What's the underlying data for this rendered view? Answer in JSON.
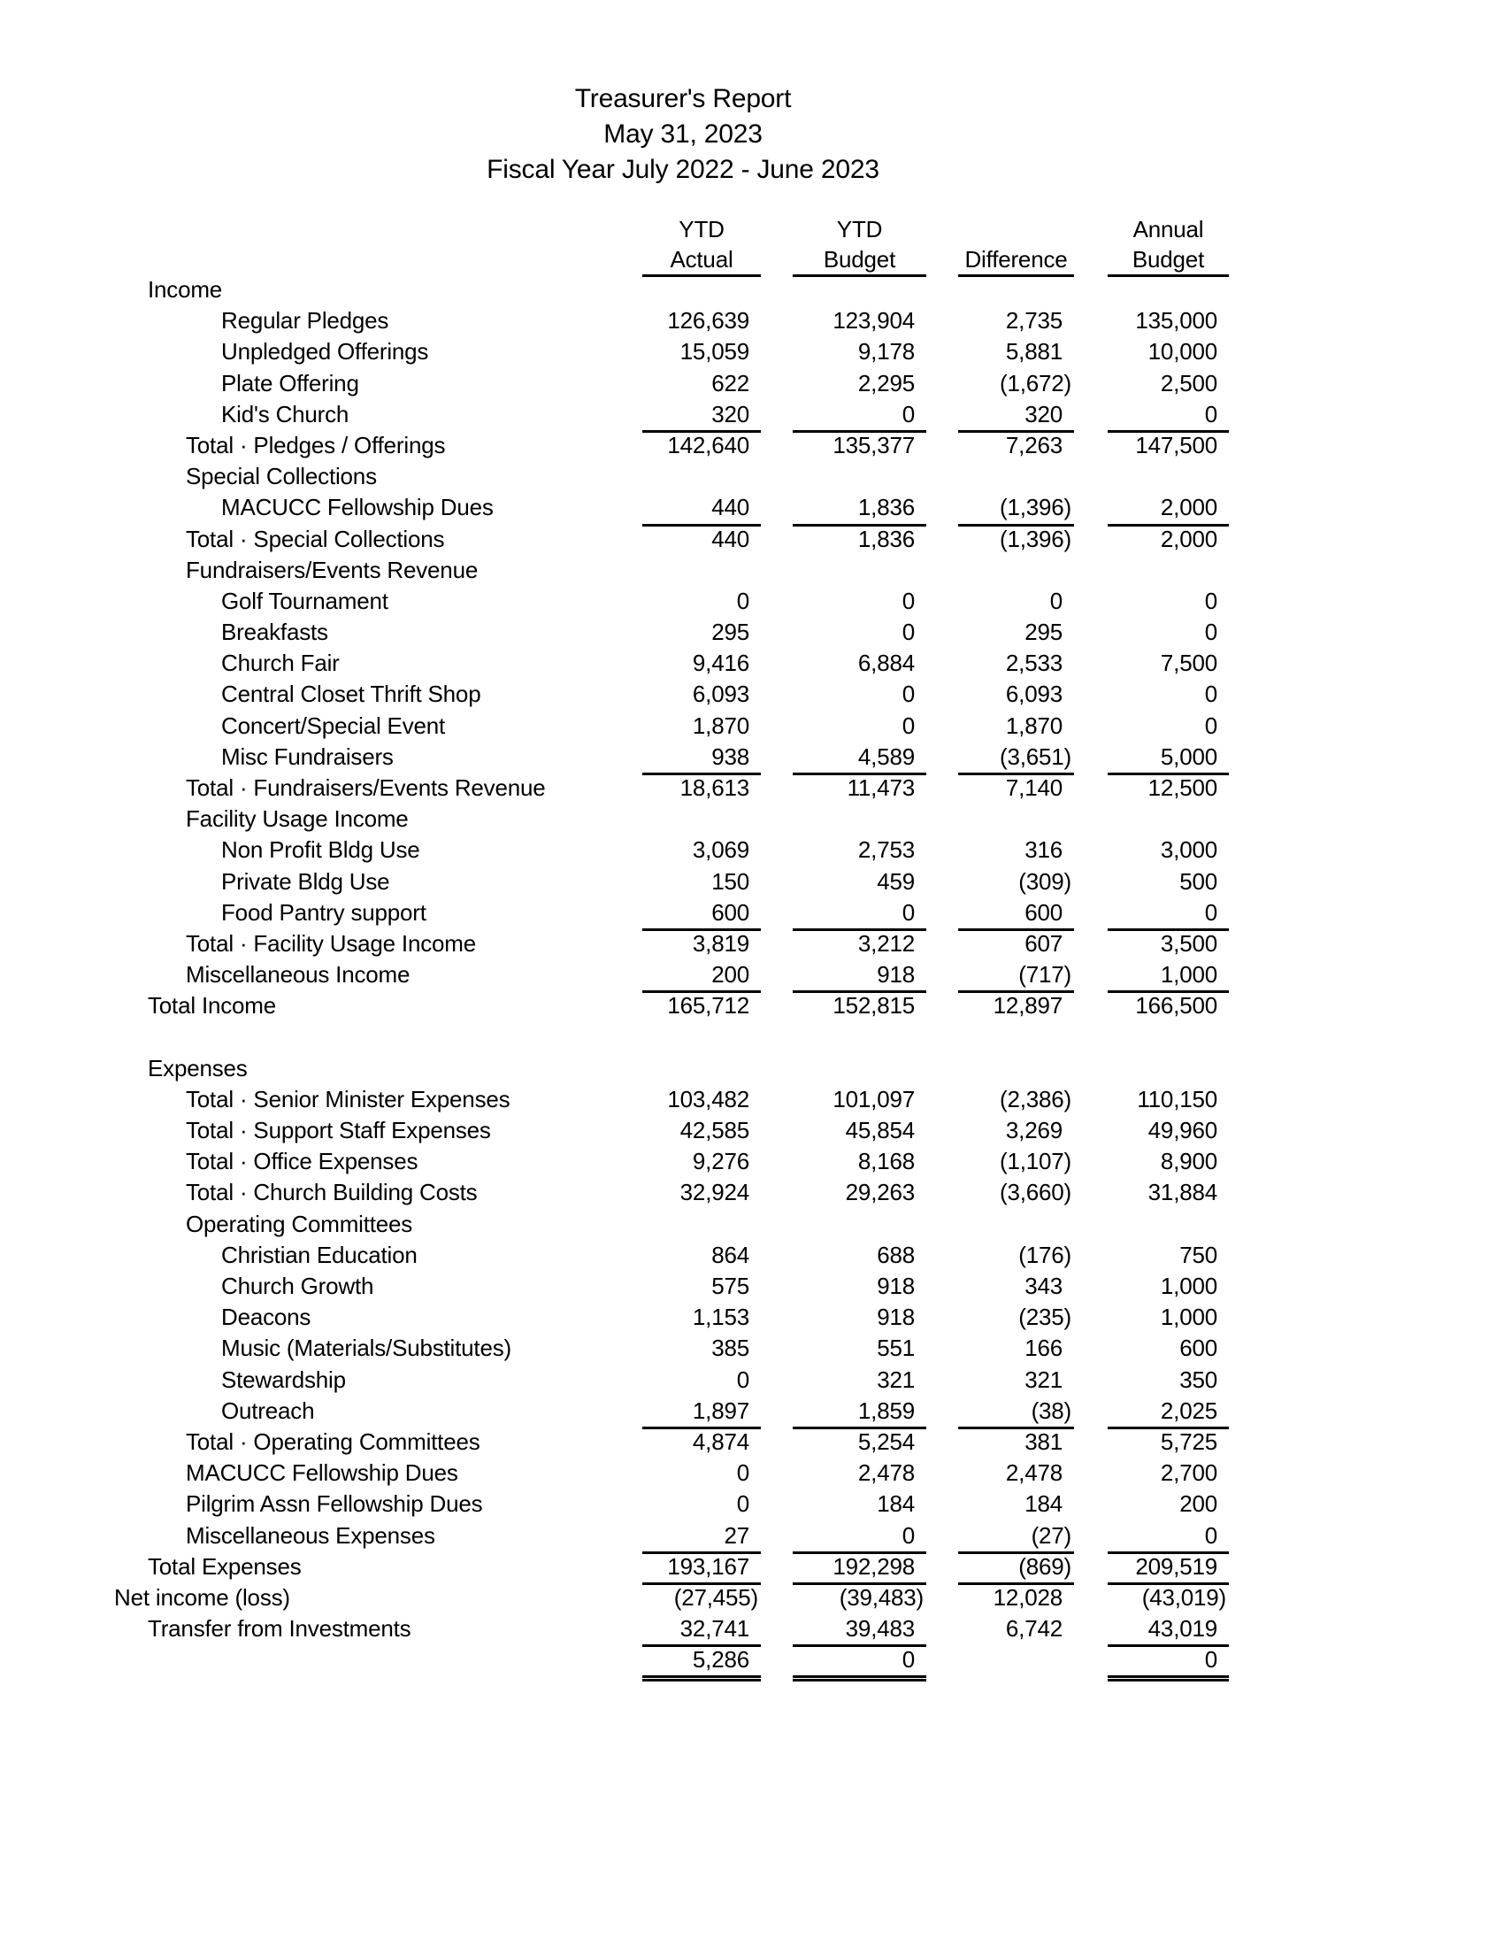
{
  "title": {
    "report": "Treasurer's Report",
    "date": "May 31, 2023",
    "fiscal_year": "Fiscal Year July 2022 - June 2023"
  },
  "table": {
    "columns": [
      {
        "top": "YTD",
        "bottom": "Actual"
      },
      {
        "top": "YTD",
        "bottom": "Budget"
      },
      {
        "top": "",
        "bottom": "Difference"
      },
      {
        "top": "Annual",
        "bottom": "Budget"
      }
    ],
    "rows": [
      {
        "label": "Income",
        "indent": 1,
        "values": [
          "",
          "",
          "",
          ""
        ]
      },
      {
        "label": "Regular Pledges",
        "indent": 3,
        "values": [
          "126,639",
          "123,904",
          "2,735",
          "135,000"
        ]
      },
      {
        "label": "Unpledged Offerings",
        "indent": 3,
        "values": [
          "15,059",
          "9,178",
          "5,881",
          "10,000"
        ]
      },
      {
        "label": "Plate Offering",
        "indent": 3,
        "values": [
          "622",
          "2,295",
          "(1,672)",
          "2,500"
        ]
      },
      {
        "label": "Kid's Church",
        "indent": 3,
        "values": [
          "320",
          "0",
          "320",
          "0"
        ],
        "underline": [
          1,
          1,
          1,
          1
        ]
      },
      {
        "label": "Total · Pledges / Offerings",
        "indent": 2,
        "values": [
          "142,640",
          "135,377",
          "7,263",
          "147,500"
        ]
      },
      {
        "label": "Special Collections",
        "indent": 2,
        "values": [
          "",
          "",
          "",
          ""
        ]
      },
      {
        "label": "MACUCC Fellowship Dues",
        "indent": 3,
        "values": [
          "440",
          "1,836",
          "(1,396)",
          "2,000"
        ],
        "underline": [
          1,
          1,
          1,
          1
        ]
      },
      {
        "label": "Total · Special Collections",
        "indent": 2,
        "values": [
          "440",
          "1,836",
          "(1,396)",
          "2,000"
        ]
      },
      {
        "label": "Fundraisers/Events Revenue",
        "indent": 2,
        "values": [
          "",
          "",
          "",
          ""
        ]
      },
      {
        "label": "Golf Tournament",
        "indent": 3,
        "values": [
          "0",
          "0",
          "0",
          "0"
        ]
      },
      {
        "label": "Breakfasts",
        "indent": 3,
        "values": [
          "295",
          "0",
          "295",
          "0"
        ]
      },
      {
        "label": "Church Fair",
        "indent": 3,
        "values": [
          "9,416",
          "6,884",
          "2,533",
          "7,500"
        ]
      },
      {
        "label": "Central Closet Thrift Shop",
        "indent": 3,
        "values": [
          "6,093",
          "0",
          "6,093",
          "0"
        ]
      },
      {
        "label": "Concert/Special Event",
        "indent": 3,
        "values": [
          "1,870",
          "0",
          "1,870",
          "0"
        ]
      },
      {
        "label": "Misc Fundraisers",
        "indent": 3,
        "values": [
          "938",
          "4,589",
          "(3,651)",
          "5,000"
        ],
        "underline": [
          1,
          1,
          1,
          1
        ]
      },
      {
        "label": "Total · Fundraisers/Events Revenue",
        "indent": 2,
        "values": [
          "18,613",
          "11,473",
          "7,140",
          "12,500"
        ]
      },
      {
        "label": "Facility Usage Income",
        "indent": 2,
        "values": [
          "",
          "",
          "",
          ""
        ]
      },
      {
        "label": "Non Profit Bldg Use",
        "indent": 3,
        "values": [
          "3,069",
          "2,753",
          "316",
          "3,000"
        ]
      },
      {
        "label": "Private Bldg Use",
        "indent": 3,
        "values": [
          "150",
          "459",
          "(309)",
          "500"
        ]
      },
      {
        "label": "Food Pantry support",
        "indent": 3,
        "values": [
          "600",
          "0",
          "600",
          "0"
        ],
        "underline": [
          1,
          1,
          1,
          1
        ]
      },
      {
        "label": "Total · Facility Usage Income",
        "indent": 2,
        "values": [
          "3,819",
          "3,212",
          "607",
          "3,500"
        ]
      },
      {
        "label": "Miscellaneous Income",
        "indent": 2,
        "values": [
          "200",
          "918",
          "(717)",
          "1,000"
        ],
        "underline": [
          1,
          1,
          1,
          1
        ]
      },
      {
        "label": "Total Income",
        "indent": 1,
        "values": [
          "165,712",
          "152,815",
          "12,897",
          "166,500"
        ]
      },
      {
        "spacer": true
      },
      {
        "label": "Expenses",
        "indent": 1,
        "values": [
          "",
          "",
          "",
          ""
        ]
      },
      {
        "label": "Total · Senior Minister Expenses",
        "indent": 2,
        "values": [
          "103,482",
          "101,097",
          "(2,386)",
          "110,150"
        ]
      },
      {
        "label": "Total · Support Staff Expenses",
        "indent": 2,
        "values": [
          "42,585",
          "45,854",
          "3,269",
          "49,960"
        ]
      },
      {
        "label": "Total · Office Expenses",
        "indent": 2,
        "values": [
          "9,276",
          "8,168",
          "(1,107)",
          "8,900"
        ]
      },
      {
        "label": "Total · Church Building Costs",
        "indent": 2,
        "values": [
          "32,924",
          "29,263",
          "(3,660)",
          "31,884"
        ]
      },
      {
        "label": "Operating Committees",
        "indent": 2,
        "values": [
          "",
          "",
          "",
          ""
        ]
      },
      {
        "label": "Christian Education",
        "indent": 3,
        "values": [
          "864",
          "688",
          "(176)",
          "750"
        ]
      },
      {
        "label": "Church Growth",
        "indent": 3,
        "values": [
          "575",
          "918",
          "343",
          "1,000"
        ]
      },
      {
        "label": "Deacons",
        "indent": 3,
        "values": [
          "1,153",
          "918",
          "(235)",
          "1,000"
        ]
      },
      {
        "label": "Music (Materials/Substitutes)",
        "indent": 3,
        "values": [
          "385",
          "551",
          "166",
          "600"
        ]
      },
      {
        "label": "Stewardship",
        "indent": 3,
        "values": [
          "0",
          "321",
          "321",
          "350"
        ]
      },
      {
        "label": "Outreach",
        "indent": 3,
        "values": [
          "1,897",
          "1,859",
          "(38)",
          "2,025"
        ],
        "underline": [
          1,
          1,
          1,
          1
        ]
      },
      {
        "label": "Total · Operating Committees",
        "indent": 2,
        "values": [
          "4,874",
          "5,254",
          "381",
          "5,725"
        ]
      },
      {
        "label": "MACUCC Fellowship Dues",
        "indent": 2,
        "values": [
          "0",
          "2,478",
          "2,478",
          "2,700"
        ]
      },
      {
        "label": "Pilgrim Assn Fellowship Dues",
        "indent": 2,
        "values": [
          "0",
          "184",
          "184",
          "200"
        ]
      },
      {
        "label": "Miscellaneous Expenses",
        "indent": 2,
        "values": [
          "27",
          "0",
          "(27)",
          "0"
        ],
        "underline": [
          1,
          1,
          1,
          1
        ]
      },
      {
        "label": "Total Expenses",
        "indent": 1,
        "values": [
          "193,167",
          "192,298",
          "(869)",
          "209,519"
        ],
        "underline": [
          1,
          1,
          1,
          1
        ]
      },
      {
        "label": "Net income (loss)",
        "indent": 0,
        "values": [
          "(27,455)",
          "(39,483)",
          "12,028",
          "(43,019)"
        ]
      },
      {
        "label": "Transfer from Investments",
        "indent": 1,
        "values": [
          "32,741",
          "39,483",
          "6,742",
          "43,019"
        ],
        "underline": [
          1,
          1,
          0,
          1
        ]
      },
      {
        "label": "",
        "indent": 0,
        "values": [
          "5,286",
          "0",
          "",
          "0"
        ],
        "double_underline": [
          1,
          1,
          0,
          1
        ]
      }
    ]
  }
}
